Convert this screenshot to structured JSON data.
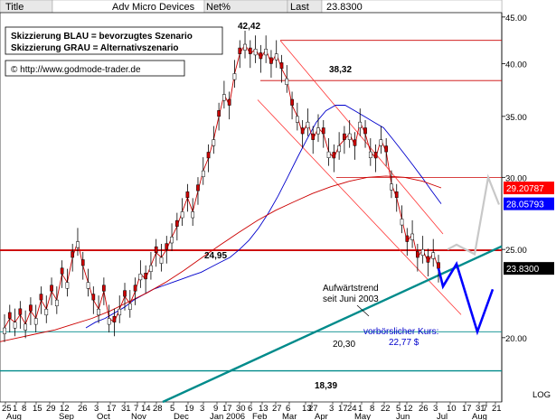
{
  "header": {
    "title_label": "Title",
    "instrument": "Adv Micro Devices",
    "change_label": "Net%",
    "last_label": "Last",
    "last_value": "23.8300"
  },
  "legend": {
    "line1": "Skizzierung BLAU = bevorzugtes Szenario",
    "line2": "Skizzierung GRAU = Alternativszenario",
    "copyright": "© http://www.godmode-trader.de"
  },
  "annotations": {
    "high": "42,42",
    "level_3832": "38,32",
    "level_2495": "24,95",
    "level_2030": "20,30",
    "level_1839": "18,39",
    "trend_line1": "Aufwärtstrend",
    "trend_line2": "seit Juni 2003",
    "target_line1": "vorbörslicher Kurs:",
    "target_line2": "22,77 $"
  },
  "price_tags": [
    {
      "label": "29.20787",
      "value": 29.20787,
      "bg": "#ff0000",
      "fg": "#ffffff"
    },
    {
      "label": "28.05793",
      "value": 28.05793,
      "bg": "#0000ff",
      "fg": "#ffffff"
    },
    {
      "label": "23.8300",
      "value": 23.83,
      "bg": "#000000",
      "fg": "#ffffff"
    }
  ],
  "colors": {
    "price": "#cc0000",
    "ma_short": "#0000cc",
    "ma_long": "#cc0000",
    "trendline": "#008b8b",
    "blue_scenario": "#0000ff",
    "grey_scenario": "#c8c8c8",
    "level_red": "#cc0000",
    "level_teal": "#008b8b",
    "channel": "#ff3333"
  },
  "chart_data": {
    "type": "line",
    "title": "Adv Micro Devices",
    "y_axis": {
      "ticks": [
        20.0,
        25.0,
        30.0,
        35.0,
        40.0,
        45.0
      ],
      "tick_labels": [
        "20.00",
        "25.00",
        "30.00",
        "35.00",
        "40.00",
        "45.00"
      ],
      "min": 17.0,
      "max": 45.5,
      "scale_label": "LOG",
      "scale": "log"
    },
    "x_axis": {
      "day_labels": [
        "25",
        "1",
        "8",
        "15",
        "29",
        "12",
        "26",
        "3",
        "17",
        "31",
        "7",
        "14",
        "28",
        "5",
        "19",
        "3",
        "9",
        "17",
        "30",
        "6",
        "13",
        "27",
        "6",
        "13",
        "27",
        "3",
        "17",
        "24",
        "1",
        "8",
        "22",
        "5",
        "12",
        "26",
        "3",
        "10",
        "17",
        "31",
        "7",
        "21"
      ],
      "month_labels": [
        "Aug",
        "Sep",
        "Oct",
        "Nov",
        "Dec",
        "Jan 2006",
        "Feb",
        "Mar",
        "Apr",
        "May",
        "Jun",
        "Jul",
        "Aug"
      ]
    },
    "levels": [
      {
        "label": "42,42",
        "value": 42.42
      },
      {
        "label": "38,32",
        "value": 38.32
      },
      {
        "label": "24,95",
        "value": 24.95
      },
      {
        "label": "20,30",
        "value": 20.3
      },
      {
        "label": "18,39",
        "value": 18.39
      }
    ],
    "series": [
      {
        "values": [
          20.5,
          21.0,
          20.8,
          21.2,
          20.7,
          21.4,
          21.0,
          22.0,
          21.5,
          22.5,
          22.0,
          23.5,
          23.0,
          24.5,
          25.5,
          24.0,
          23.0,
          22.0,
          21.5,
          22.5,
          21.0,
          20.8,
          21.5,
          22.2,
          21.8,
          22.5,
          23.5,
          23.2,
          24.0,
          24.8,
          24.5,
          25.0,
          25.8,
          26.5,
          27.5,
          28.5,
          27.5,
          29.0,
          30.5,
          31.5,
          33.0,
          35.0,
          37.0,
          36.0,
          39.0,
          41.0,
          42.0,
          41.0,
          41.5,
          40.5,
          41.5,
          40.0,
          41.0,
          39.5,
          38.5,
          36.0,
          35.0,
          33.5,
          34.5,
          33.0,
          34.0,
          33.5,
          32.0,
          31.5,
          32.5,
          33.0,
          33.5,
          32.5,
          34.5,
          33.5,
          32.0,
          31.5,
          33.0,
          32.0,
          29.5,
          28.5,
          27.0,
          25.5,
          26.0,
          24.5,
          25.0,
          24.2,
          24.8,
          23.83
        ]
      },
      {
        "values": [
          20.5,
          20.8,
          21.0,
          21.3,
          21.6,
          22.0,
          22.3,
          22.6,
          22.8,
          23.0,
          23.2,
          23.4,
          23.6,
          23.9,
          24.2,
          24.5,
          25.0,
          25.6,
          26.4,
          27.4,
          28.6,
          30.0,
          31.5,
          33.0,
          34.5,
          35.5,
          36.0,
          36.0,
          35.5,
          35.0,
          34.5,
          34.0,
          33.0,
          32.0,
          31.0,
          30.0,
          29.0,
          28.06
        ]
      },
      {
        "values": [
          19.8,
          20.0,
          20.2,
          20.4,
          20.7,
          21.0,
          21.4,
          21.9,
          22.4,
          23.0,
          23.7,
          24.5,
          25.3,
          26.1,
          26.9,
          27.6,
          28.2,
          28.8,
          29.3,
          29.7,
          30.0,
          30.1,
          30.0,
          29.7,
          29.21
        ]
      }
    ],
    "scenarios": {
      "blue_path": [
        23.83,
        22.77,
        24.1,
        20.3,
        22.6
      ],
      "grey_path": [
        25.0,
        25.3,
        24.7,
        30.0,
        28.0
      ]
    }
  }
}
